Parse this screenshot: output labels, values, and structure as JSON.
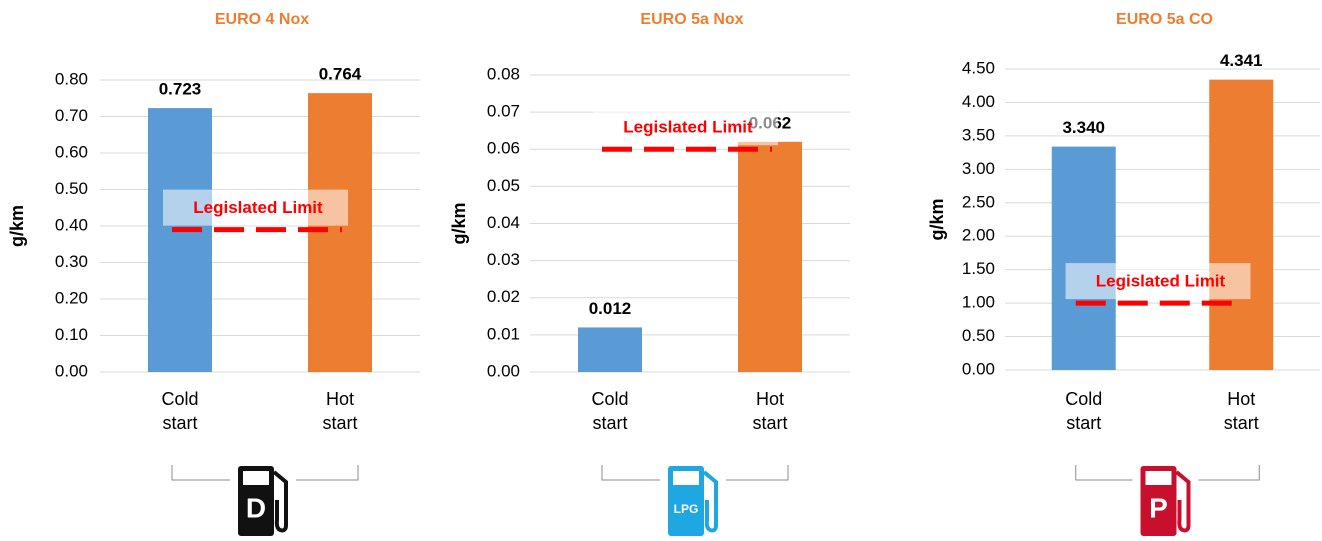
{
  "chart_data": [
    {
      "type": "bar",
      "title": "EURO 4 Nox",
      "y_label": "g/km",
      "categories": [
        "Cold start",
        "Hot start"
      ],
      "values": [
        0.723,
        0.764
      ],
      "value_labels": [
        "0.723",
        "0.764"
      ],
      "colors": [
        "#5b9bd5",
        "#ed7d31"
      ],
      "ylim": [
        0,
        0.8
      ],
      "yticks": [
        {
          "value": 0,
          "label": "0.00"
        },
        {
          "value": 0.1,
          "label": "0.10"
        },
        {
          "value": 0.2,
          "label": "0.20"
        },
        {
          "value": 0.3,
          "label": "0.30"
        },
        {
          "value": 0.4,
          "label": "0.40"
        },
        {
          "value": 0.5,
          "label": "0.50"
        },
        {
          "value": 0.6,
          "label": "0.60"
        },
        {
          "value": 0.7,
          "label": "0.70"
        },
        {
          "value": 0.8,
          "label": "0.80"
        }
      ],
      "grid": true,
      "limit": {
        "label": "Legislated Limit",
        "value": 0.39,
        "color": "#ff0000"
      },
      "icon_label": "D",
      "icon_color": "#111111"
    },
    {
      "type": "bar",
      "title": "EURO 5a Nox",
      "y_label": "g/km",
      "categories": [
        "Cold start",
        "Hot start"
      ],
      "values": [
        0.012,
        0.062
      ],
      "value_labels": [
        "0.012",
        "0.062"
      ],
      "colors": [
        "#5b9bd5",
        "#ed7d31"
      ],
      "ylim": [
        0,
        0.08
      ],
      "yticks": [
        {
          "value": 0,
          "label": "0.00"
        },
        {
          "value": 0.01,
          "label": "0.01"
        },
        {
          "value": 0.02,
          "label": "0.02"
        },
        {
          "value": 0.03,
          "label": "0.03"
        },
        {
          "value": 0.04,
          "label": "0.04"
        },
        {
          "value": 0.05,
          "label": "0.05"
        },
        {
          "value": 0.06,
          "label": "0.06"
        },
        {
          "value": 0.07,
          "label": "0.07"
        },
        {
          "value": 0.08,
          "label": "0.08"
        }
      ],
      "grid": true,
      "limit": {
        "label": "Legislated Limit",
        "value": 0.06,
        "color": "#ff0000"
      },
      "icon_label": "LPG",
      "icon_color": "#1ea7e1"
    },
    {
      "type": "bar",
      "title": "EURO 5a CO",
      "y_label": "g/km",
      "categories": [
        "Cold start",
        "Hot start"
      ],
      "values": [
        3.34,
        4.341
      ],
      "value_labels": [
        "3.340",
        "4.341"
      ],
      "colors": [
        "#5b9bd5",
        "#ed7d31"
      ],
      "ylim": [
        0,
        4.5
      ],
      "yticks": [
        {
          "value": 0,
          "label": "0.00"
        },
        {
          "value": 0.5,
          "label": "0.50"
        },
        {
          "value": 1,
          "label": "1.00"
        },
        {
          "value": 1.5,
          "label": "1.50"
        },
        {
          "value": 2,
          "label": "2.00"
        },
        {
          "value": 2.5,
          "label": "2.50"
        },
        {
          "value": 3,
          "label": "3.00"
        },
        {
          "value": 3.5,
          "label": "3.50"
        },
        {
          "value": 4,
          "label": "4.00"
        },
        {
          "value": 4.5,
          "label": "4.50"
        }
      ],
      "grid": true,
      "limit": {
        "label": "Legislated Limit",
        "value": 1,
        "color": "#ff0000"
      },
      "icon_label": "P",
      "icon_color": "#c8102e"
    }
  ]
}
